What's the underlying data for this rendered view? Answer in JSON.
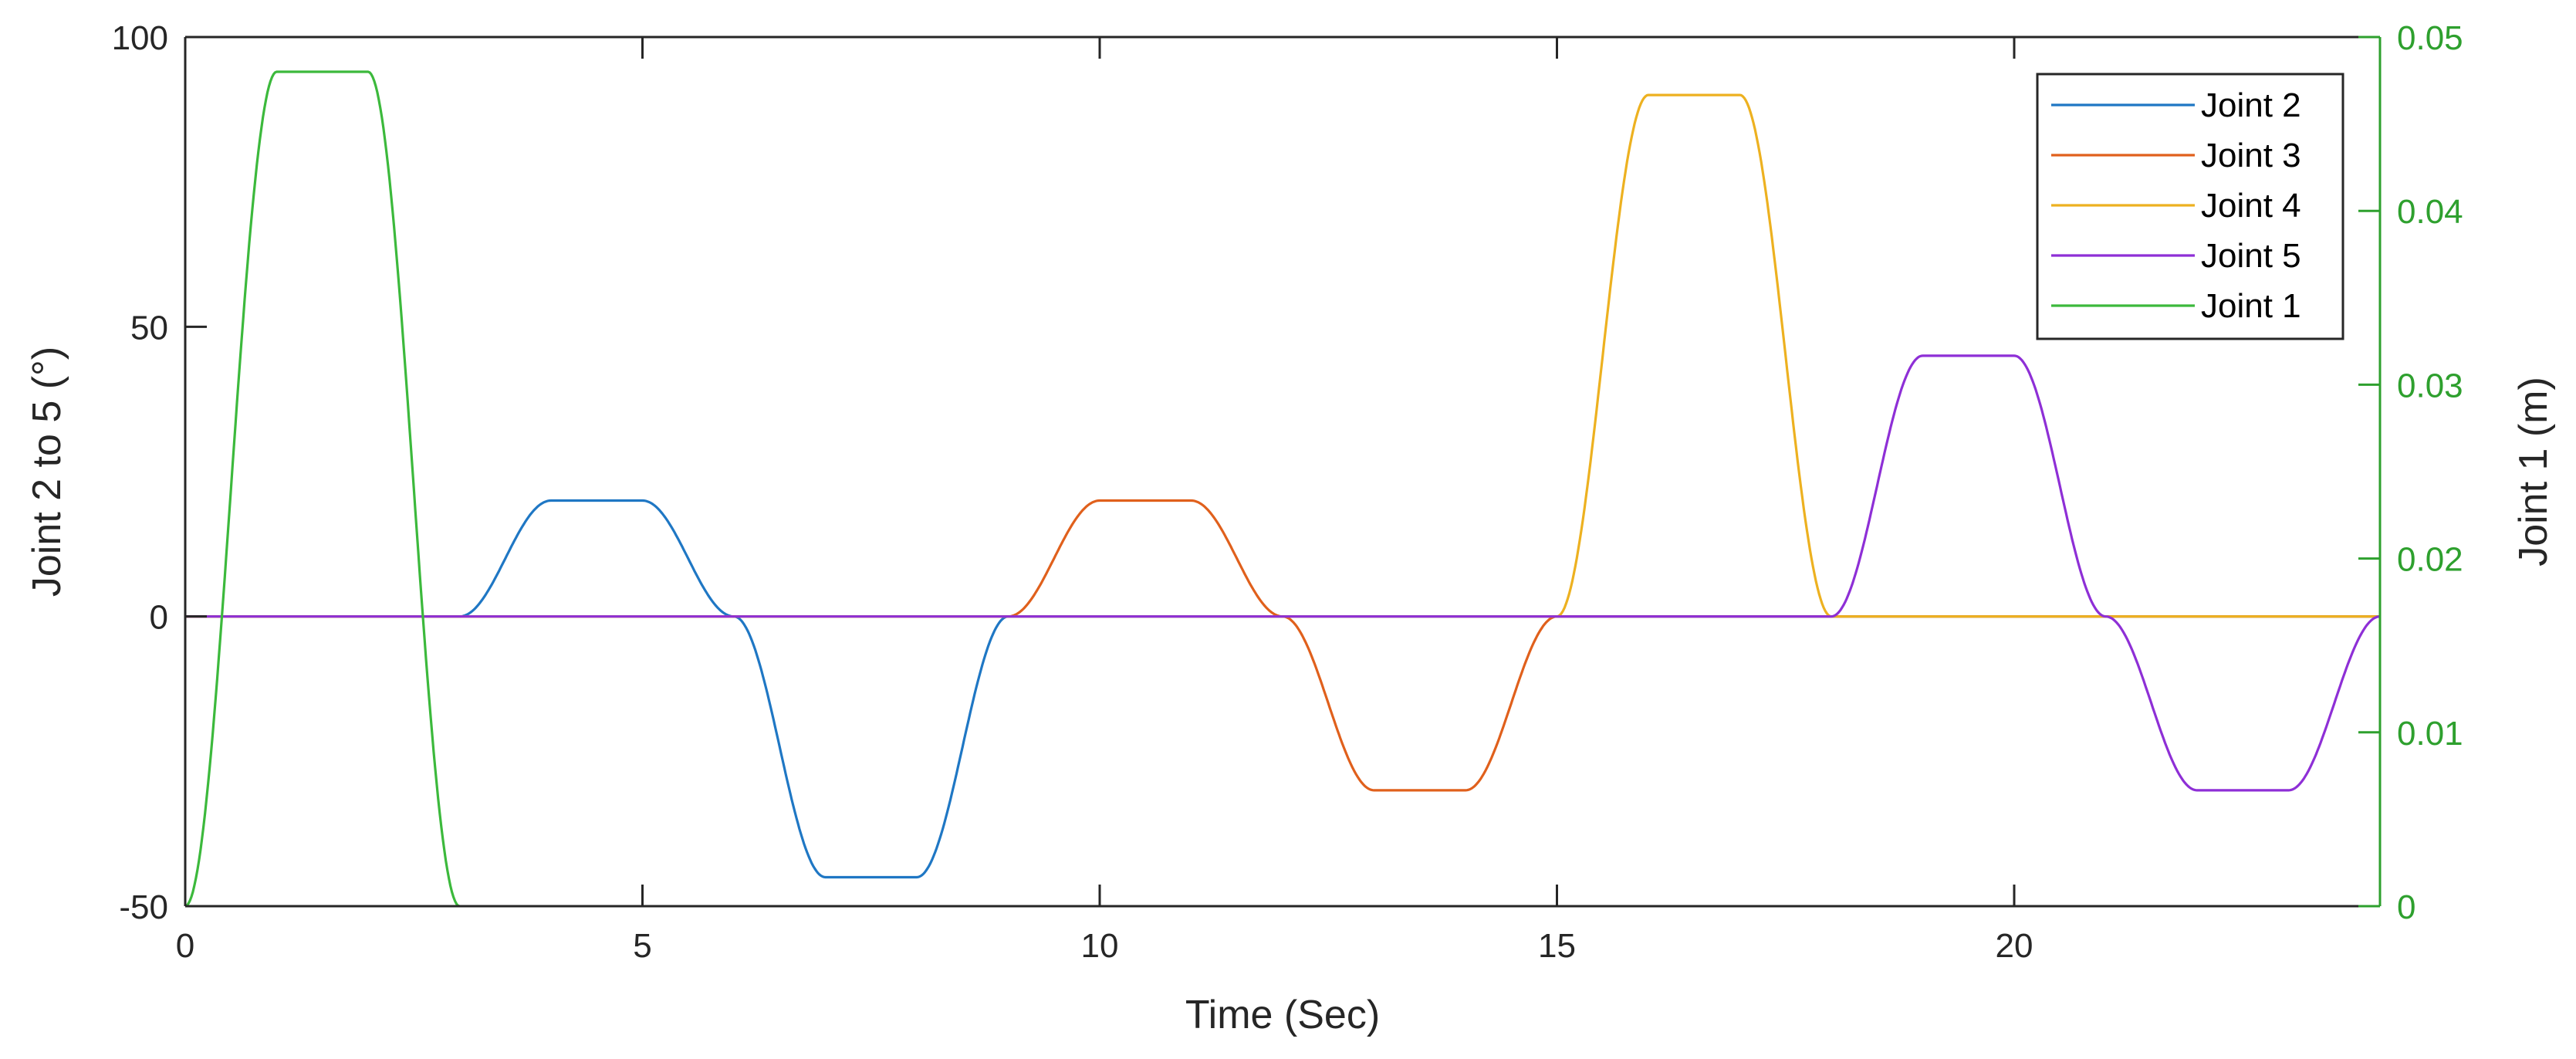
{
  "chart_data": {
    "type": "line",
    "xlabel": "Time (Sec)",
    "ylabel": "Joint 2 to 5 (°)",
    "ylabel_right": "Joint 1 (m)",
    "xlim": [
      0,
      24
    ],
    "ylim": [
      -50,
      100
    ],
    "ylim_right": [
      0,
      0.05
    ],
    "x_ticks": [
      0,
      5,
      10,
      15,
      20
    ],
    "x_tick_labels": [
      "0",
      "5",
      "10",
      "15",
      "20"
    ],
    "y_ticks": [
      -50,
      0,
      50,
      100
    ],
    "y_tick_labels": [
      "-50",
      "0",
      "50",
      "100"
    ],
    "y_ticks_right": [
      0,
      0.01,
      0.02,
      0.03,
      0.04,
      0.05
    ],
    "y_tick_labels_right": [
      "0",
      "0.01",
      "0.02",
      "0.03",
      "0.04",
      "0.05"
    ],
    "grid": false,
    "legend_position": "top-right",
    "right_axis_color": "#2ea02e",
    "series": [
      {
        "name": "Joint 2",
        "axis": "left",
        "color": "#1f77c4",
        "x": [
          0,
          3,
          4,
          5,
          6,
          7,
          8,
          9,
          24
        ],
        "y": [
          0,
          0,
          20,
          20,
          0,
          -45,
          -45,
          0,
          0
        ]
      },
      {
        "name": "Joint 3",
        "axis": "left",
        "color": "#e0601c",
        "x": [
          0,
          9,
          10,
          11,
          12,
          13,
          14,
          15,
          24
        ],
        "y": [
          0,
          0,
          20,
          20,
          0,
          -30,
          -30,
          0,
          0
        ]
      },
      {
        "name": "Joint 4",
        "axis": "left",
        "color": "#edb120",
        "x": [
          0,
          15,
          16,
          17,
          18,
          24
        ],
        "y": [
          0,
          0,
          90,
          90,
          0,
          0
        ]
      },
      {
        "name": "Joint 5",
        "axis": "left",
        "color": "#8e2fd6",
        "x": [
          0,
          18,
          19,
          20,
          21,
          22,
          23,
          24
        ],
        "y": [
          0,
          0,
          45,
          45,
          0,
          -30,
          -30,
          0
        ]
      },
      {
        "name": "Joint 1",
        "axis": "right",
        "color": "#3cb93c",
        "x": [
          0,
          1,
          2,
          3
        ],
        "y": [
          0,
          0.048,
          0.048,
          0
        ]
      }
    ]
  }
}
